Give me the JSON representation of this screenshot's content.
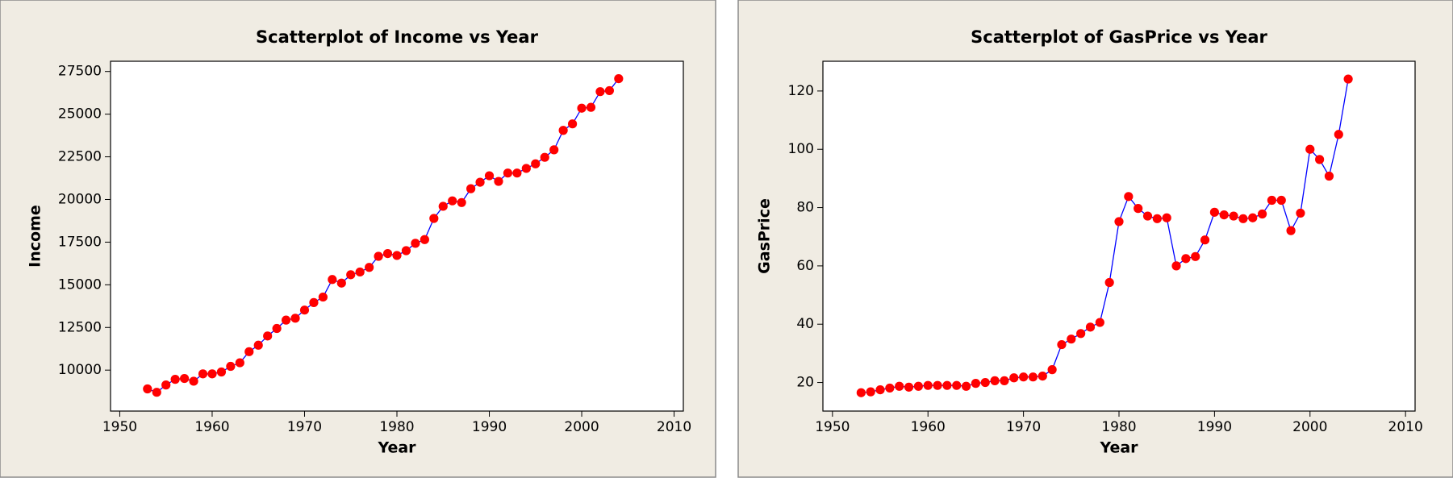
{
  "chart_data": [
    {
      "type": "scatter",
      "title": "Scatterplot of Income vs Year",
      "x_label": "Year",
      "y_label": "Income",
      "x": [
        1953,
        1954,
        1955,
        1956,
        1957,
        1958,
        1959,
        1960,
        1961,
        1962,
        1963,
        1964,
        1965,
        1966,
        1967,
        1968,
        1969,
        1970,
        1971,
        1972,
        1973,
        1974,
        1975,
        1976,
        1977,
        1978,
        1979,
        1980,
        1981,
        1982,
        1983,
        1984,
        1985,
        1986,
        1987,
        1988,
        1989,
        1990,
        1991,
        1992,
        1993,
        1994,
        1995,
        1996,
        1997,
        1998,
        1999,
        2000,
        2001,
        2002,
        2003,
        2004
      ],
      "values": [
        8900,
        8700,
        9130,
        9460,
        9510,
        9350,
        9780,
        9780,
        9890,
        10220,
        10430,
        11080,
        11460,
        12000,
        12440,
        12930,
        13040,
        13520,
        13960,
        14280,
        15310,
        15100,
        15590,
        15750,
        16020,
        16670,
        16830,
        16720,
        17000,
        17430,
        17650,
        18890,
        19600,
        19920,
        19820,
        20630,
        21010,
        21390,
        21060,
        21550,
        21550,
        21820,
        22090,
        22470,
        22910,
        24050,
        24430,
        25350,
        25400,
        26320,
        26380,
        27080
      ],
      "color": "#ff0000",
      "line_color": "#0000ff",
      "xlim": [
        1949,
        2011
      ],
      "ylim": [
        7600,
        28100
      ],
      "xticks": [
        1950,
        1960,
        1970,
        1980,
        1990,
        2000,
        2010
      ],
      "yticks": [
        10000,
        12500,
        15000,
        17500,
        20000,
        22500,
        25000,
        27500
      ]
    },
    {
      "type": "scatter",
      "title": "Scatterplot of GasPrice vs Year",
      "x_label": "Year",
      "y_label": "GasPrice",
      "x": [
        1953,
        1954,
        1955,
        1956,
        1957,
        1958,
        1959,
        1960,
        1961,
        1962,
        1963,
        1964,
        1965,
        1966,
        1967,
        1968,
        1969,
        1970,
        1971,
        1972,
        1973,
        1974,
        1975,
        1976,
        1977,
        1978,
        1979,
        1980,
        1981,
        1982,
        1983,
        1984,
        1985,
        1986,
        1987,
        1988,
        1989,
        1990,
        1991,
        1992,
        1993,
        1994,
        1995,
        1996,
        1997,
        1998,
        1999,
        2000,
        2001,
        2002,
        2003,
        2004
      ],
      "values": [
        16.5,
        16.8,
        17.5,
        18.1,
        18.7,
        18.4,
        18.7,
        19.0,
        19.0,
        19.0,
        19.0,
        18.7,
        19.7,
        20.0,
        20.6,
        20.6,
        21.6,
        21.9,
        21.9,
        22.2,
        24.4,
        33.0,
        34.9,
        36.8,
        39.0,
        40.6,
        54.3,
        75.2,
        83.8,
        79.7,
        77.1,
        76.2,
        76.5,
        60.0,
        62.5,
        63.2,
        68.9,
        78.4,
        77.5,
        77.1,
        76.2,
        76.5,
        77.8,
        82.5,
        82.5,
        72.1,
        78.1,
        100.0,
        96.5,
        90.8,
        105.1,
        124.1
      ],
      "color": "#ff0000",
      "line_color": "#0000ff",
      "xlim": [
        1949,
        2011
      ],
      "ylim": [
        10.2,
        130.2
      ],
      "xticks": [
        1950,
        1960,
        1970,
        1980,
        1990,
        2000,
        2010
      ],
      "yticks": [
        20,
        40,
        60,
        80,
        100,
        120
      ]
    }
  ]
}
